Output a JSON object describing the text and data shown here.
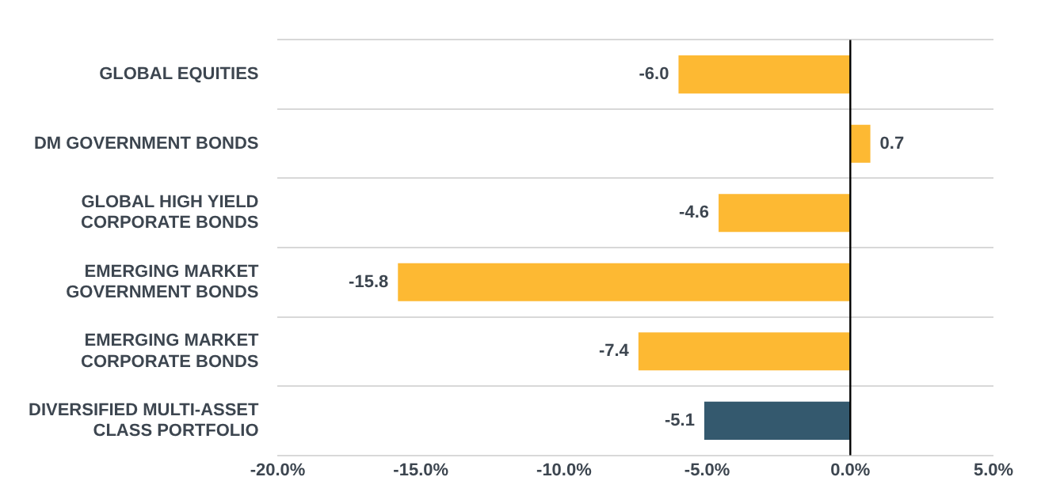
{
  "chart_data": {
    "type": "bar",
    "orientation": "horizontal",
    "categories": [
      "GLOBAL EQUITIES",
      "DM GOVERNMENT BONDS",
      "GLOBAL HIGH YIELD\nCORPORATE BONDS",
      "EMERGING MARKET\nGOVERNMENT BONDS",
      "EMERGING MARKET\nCORPORATE BONDS",
      "DIVERSIFIED MULTI-ASSET\nCLASS PORTFOLIO"
    ],
    "values": [
      -6.0,
      0.7,
      -4.6,
      -15.8,
      -7.4,
      -5.1
    ],
    "colors": [
      "#fdb933",
      "#fdb933",
      "#fdb933",
      "#fdb933",
      "#fdb933",
      "#34596e"
    ],
    "value_labels": [
      "-6.0",
      "0.7",
      "-4.6",
      "-15.8",
      "-7.4",
      "-5.1"
    ],
    "xlim": [
      -20,
      5
    ],
    "xticks": [
      {
        "value": -20,
        "label": "-20.0%"
      },
      {
        "value": -15,
        "label": "-15.0%"
      },
      {
        "value": -10,
        "label": "-10.0%"
      },
      {
        "value": -5,
        "label": "-5.0%"
      },
      {
        "value": 0,
        "label": "0.0%"
      },
      {
        "value": 5,
        "label": "5.0%"
      }
    ],
    "ref_lines": [
      {
        "axis": "x",
        "value": 0,
        "color": "#000000"
      }
    ],
    "grid": "y",
    "legend": false
  }
}
